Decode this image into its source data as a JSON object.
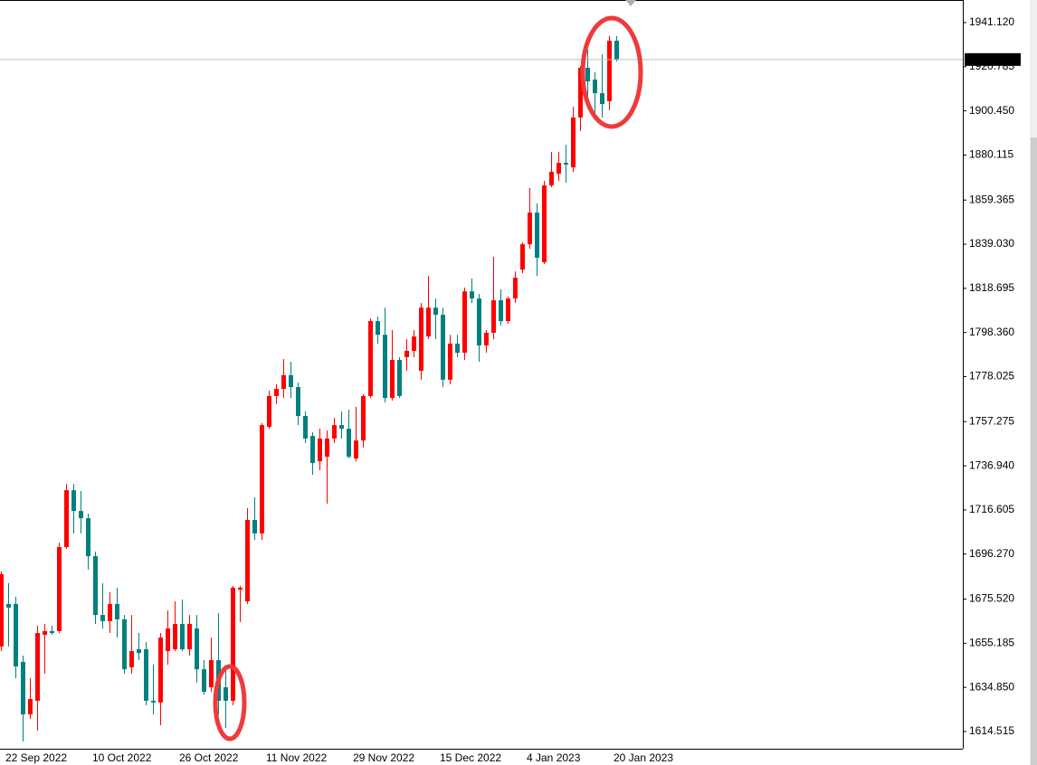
{
  "chart_data": {
    "type": "candlestick",
    "categories": [
      null,
      "22 Sep 2022",
      null,
      null,
      null,
      null,
      null,
      null,
      null,
      null,
      null,
      null,
      null,
      "10 Oct 2022",
      null,
      null,
      null,
      null,
      null,
      null,
      null,
      null,
      null,
      null,
      null,
      "26 Oct 2022",
      null,
      null,
      null,
      null,
      null,
      null,
      null,
      null,
      null,
      null,
      null,
      "11 Nov 2022",
      null,
      null,
      null,
      null,
      null,
      null,
      null,
      null,
      null,
      null,
      null,
      "29 Nov 2022",
      null,
      null,
      null,
      null,
      null,
      null,
      null,
      null,
      null,
      null,
      null,
      "15 Dec 2022",
      null,
      null,
      null,
      null,
      null,
      null,
      null,
      null,
      null,
      null,
      null,
      "4 Jan 2023",
      null,
      null,
      null,
      null,
      null,
      null,
      null,
      null,
      null,
      null,
      null,
      "20 Jan 2023"
    ],
    "open": [
      1653.7,
      1673.3,
      1673.3,
      1646.6,
      1622.4,
      1628.7,
      1659.1,
      1660.8,
      1660.8,
      1699.5,
      1725.7,
      1716.1,
      1712.8,
      1695.3,
      1668.2,
      1665.4,
      1673.3,
      1666.2,
      1644.1,
      1652.4,
      1652.4,
      1628.7,
      1627.9,
      1651.6,
      1652.4,
      1664.1,
      1652.4,
      1662.0,
      1643.2,
      1634.9,
      1647.4,
      1634.9,
      1628.7,
      1679.9,
      1674.5,
      1712.0,
      1705.8,
      1754.9,
      1769.1,
      1772.4,
      1778.7,
      1773.2,
      1759.9,
      1750.7,
      1739.0,
      1741.1,
      1749.5,
      1755.7,
      1754.0,
      1740.3,
      1748.6,
      1769.1,
      1803.6,
      1797.3,
      1768.2,
      1785.7,
      1787.0,
      1789.9,
      1780.7,
      1796.5,
      1809.8,
      1806.5,
      1776.6,
      1793.2,
      1789.0,
      1817.3,
      1814.0,
      1792.4,
      1798.2,
      1813.2,
      1803.6,
      1814.0,
      1827.3,
      1839.0,
      1853.6,
      1830.7,
      1866.1,
      1871.5,
      1876.5,
      1874.4,
      1897.4,
      1920.3,
      1914.9,
      1908.6,
      1904.9,
      1932.8
    ],
    "high": [
      1688.3,
      1682.9,
      1676.6,
      1649.5,
      1639.1,
      1663.3,
      1664.1,
      1663.3,
      1701.6,
      1728.6,
      1728.6,
      1725.3,
      1714.9,
      1697.4,
      1682.9,
      1678.7,
      1680.8,
      1668.2,
      1668.2,
      1659.9,
      1655.7,
      1645.3,
      1659.9,
      1670.3,
      1674.5,
      1675.4,
      1668.2,
      1668.2,
      1647.4,
      1657.8,
      1669.1,
      1643.2,
      1681.6,
      1681.6,
      1717.4,
      1722.4,
      1756.5,
      1771.6,
      1774.5,
      1786.1,
      1784.9,
      1775.3,
      1762.0,
      1752.4,
      1754.0,
      1753.2,
      1759.0,
      1762.0,
      1762.8,
      1764.1,
      1769.9,
      1804.8,
      1805.7,
      1809.8,
      1799.4,
      1787.0,
      1795.3,
      1799.4,
      1811.9,
      1824.4,
      1814.0,
      1809.8,
      1797.3,
      1797.3,
      1819.0,
      1823.2,
      1816.1,
      1799.4,
      1833.2,
      1818.2,
      1814.9,
      1826.5,
      1839.9,
      1864.9,
      1857.8,
      1868.2,
      1881.5,
      1881.5,
      1884.9,
      1902.4,
      1921.1,
      1928.6,
      1918.2,
      1926.5,
      1934.9,
      1934.9
    ],
    "low": [
      1651.6,
      1653.7,
      1639.1,
      1609.9,
      1620.3,
      1614.9,
      1641.2,
      1659.1,
      1659.9,
      1698.7,
      1705.8,
      1705.8,
      1689.1,
      1664.1,
      1662.0,
      1659.9,
      1657.8,
      1641.2,
      1641.2,
      1647.4,
      1626.6,
      1622.4,
      1617.4,
      1645.3,
      1651.6,
      1651.6,
      1649.5,
      1637.0,
      1631.6,
      1632.8,
      1622.4,
      1616.1,
      1626.6,
      1664.9,
      1673.3,
      1702.8,
      1702.8,
      1754.0,
      1765.3,
      1768.2,
      1768.2,
      1755.7,
      1747.4,
      1732.8,
      1734.9,
      1719.5,
      1747.4,
      1749.5,
      1740.3,
      1739.0,
      1745.3,
      1768.2,
      1793.2,
      1766.1,
      1767.0,
      1768.2,
      1780.7,
      1787.0,
      1776.6,
      1795.3,
      1795.3,
      1773.2,
      1774.5,
      1787.0,
      1785.7,
      1811.9,
      1784.9,
      1789.0,
      1795.3,
      1801.5,
      1802.4,
      1811.9,
      1825.7,
      1836.9,
      1824.4,
      1829.9,
      1865.3,
      1868.2,
      1867.4,
      1872.4,
      1891.1,
      1901.5,
      1899.4,
      1897.4,
      1900.7,
      1923.2
    ],
    "close": [
      1687.0,
      1671.6,
      1644.5,
      1622.4,
      1629.5,
      1659.9,
      1660.8,
      1659.9,
      1699.5,
      1725.7,
      1716.1,
      1712.8,
      1695.3,
      1668.2,
      1665.4,
      1673.3,
      1666.2,
      1643.2,
      1651.6,
      1650.7,
      1628.7,
      1627.9,
      1657.8,
      1662.0,
      1664.1,
      1652.4,
      1664.1,
      1643.2,
      1632.8,
      1647.4,
      1628.7,
      1628.7,
      1680.8,
      1680.8,
      1712.0,
      1705.8,
      1755.7,
      1769.1,
      1772.4,
      1778.7,
      1773.2,
      1759.9,
      1749.5,
      1738.2,
      1749.5,
      1749.5,
      1755.7,
      1754.0,
      1741.1,
      1748.6,
      1769.1,
      1803.6,
      1797.3,
      1768.2,
      1785.7,
      1769.1,
      1789.9,
      1796.5,
      1809.8,
      1809.8,
      1806.5,
      1776.6,
      1793.2,
      1789.0,
      1817.3,
      1814.0,
      1792.4,
      1798.2,
      1813.2,
      1803.6,
      1814.0,
      1823.6,
      1839.0,
      1853.6,
      1832.8,
      1866.1,
      1872.4,
      1876.5,
      1875.7,
      1897.4,
      1920.3,
      1914.0,
      1908.6,
      1903.6,
      1932.8,
      1924.11
    ],
    "up_color": "#ff0000",
    "down_color": "#008080",
    "ylim": [
      1606.6,
      1951.53
    ],
    "yticks": [
      {
        "value": 1614.515,
        "label": "1614.515"
      },
      {
        "value": 1634.85,
        "label": "1634.850"
      },
      {
        "value": 1655.185,
        "label": "1655.185"
      },
      {
        "value": 1675.52,
        "label": "1675.520"
      },
      {
        "value": 1696.27,
        "label": "1696.270"
      },
      {
        "value": 1716.605,
        "label": "1716.605"
      },
      {
        "value": 1736.94,
        "label": "1736.940"
      },
      {
        "value": 1757.275,
        "label": "1757.275"
      },
      {
        "value": 1778.025,
        "label": "1778.025"
      },
      {
        "value": 1798.36,
        "label": "1798.360"
      },
      {
        "value": 1818.695,
        "label": "1818.695"
      },
      {
        "value": 1839.03,
        "label": "1839.030"
      },
      {
        "value": 1859.365,
        "label": "1859.365"
      },
      {
        "value": 1880.115,
        "label": "1880.115"
      },
      {
        "value": 1900.45,
        "label": "1900.450"
      },
      {
        "value": 1920.785,
        "label": "1920.785"
      },
      {
        "value": 1941.12,
        "label": "1941.120"
      }
    ],
    "last_price": {
      "value": 1924.11,
      "label": "1924.110"
    },
    "grid": false
  }
}
